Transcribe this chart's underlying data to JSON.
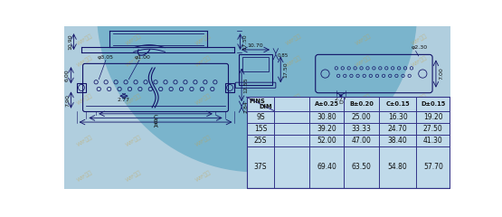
{
  "bg_color": "#b0cede",
  "bg_arc_color": "#7ab4cc",
  "line_color": "#111166",
  "text_color": "#111111",
  "table_bg": "#c0daea",
  "table_border": "#333388",
  "watermark_color": "#c8a040",
  "table_headers_diag": [
    "PINS",
    "DIM"
  ],
  "table_headers": [
    "A±0.25",
    "B±0.20",
    "C±0.15",
    "D±0.15"
  ],
  "table_rows": [
    [
      "9S",
      "30.80",
      "25.00",
      "16.30",
      "19.20"
    ],
    [
      "15S",
      "39.20",
      "33.33",
      "24.70",
      "27.50"
    ],
    [
      "25S",
      "52.00",
      "47.00",
      "38.40",
      "41.30"
    ],
    [
      "37S",
      "69.40",
      "63.50",
      "54.80",
      "57.70"
    ]
  ]
}
